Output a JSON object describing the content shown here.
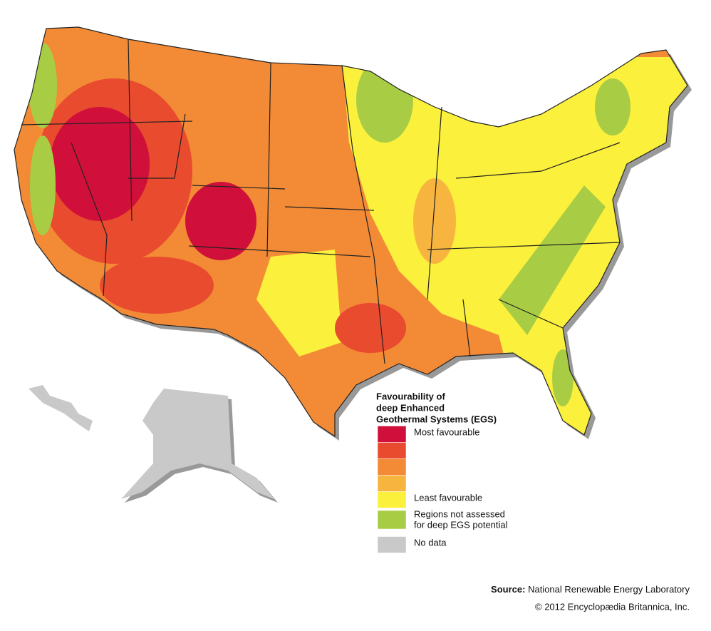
{
  "legend": {
    "title": [
      "Favourability of",
      "deep Enhanced",
      "Geothermal Systems (EGS)"
    ],
    "items": [
      {
        "color": "#d0103a",
        "label": "Most favourable"
      },
      {
        "color": "#e94b2e"
      },
      {
        "color": "#f28a36"
      },
      {
        "color": "#f7b43e"
      },
      {
        "color": "#fbf03c",
        "label": "Least favourable"
      },
      {
        "color": "#a8cd45",
        "label": [
          "Regions not assessed",
          "for deep EGS potential"
        ]
      },
      {
        "color": "#c9c9c9",
        "label": "No data"
      }
    ]
  },
  "source": {
    "label": "Source:",
    "text": "National Renewable Energy Laboratory"
  },
  "copyright": "© 2012 Encyclopædia Britannica, Inc."
}
